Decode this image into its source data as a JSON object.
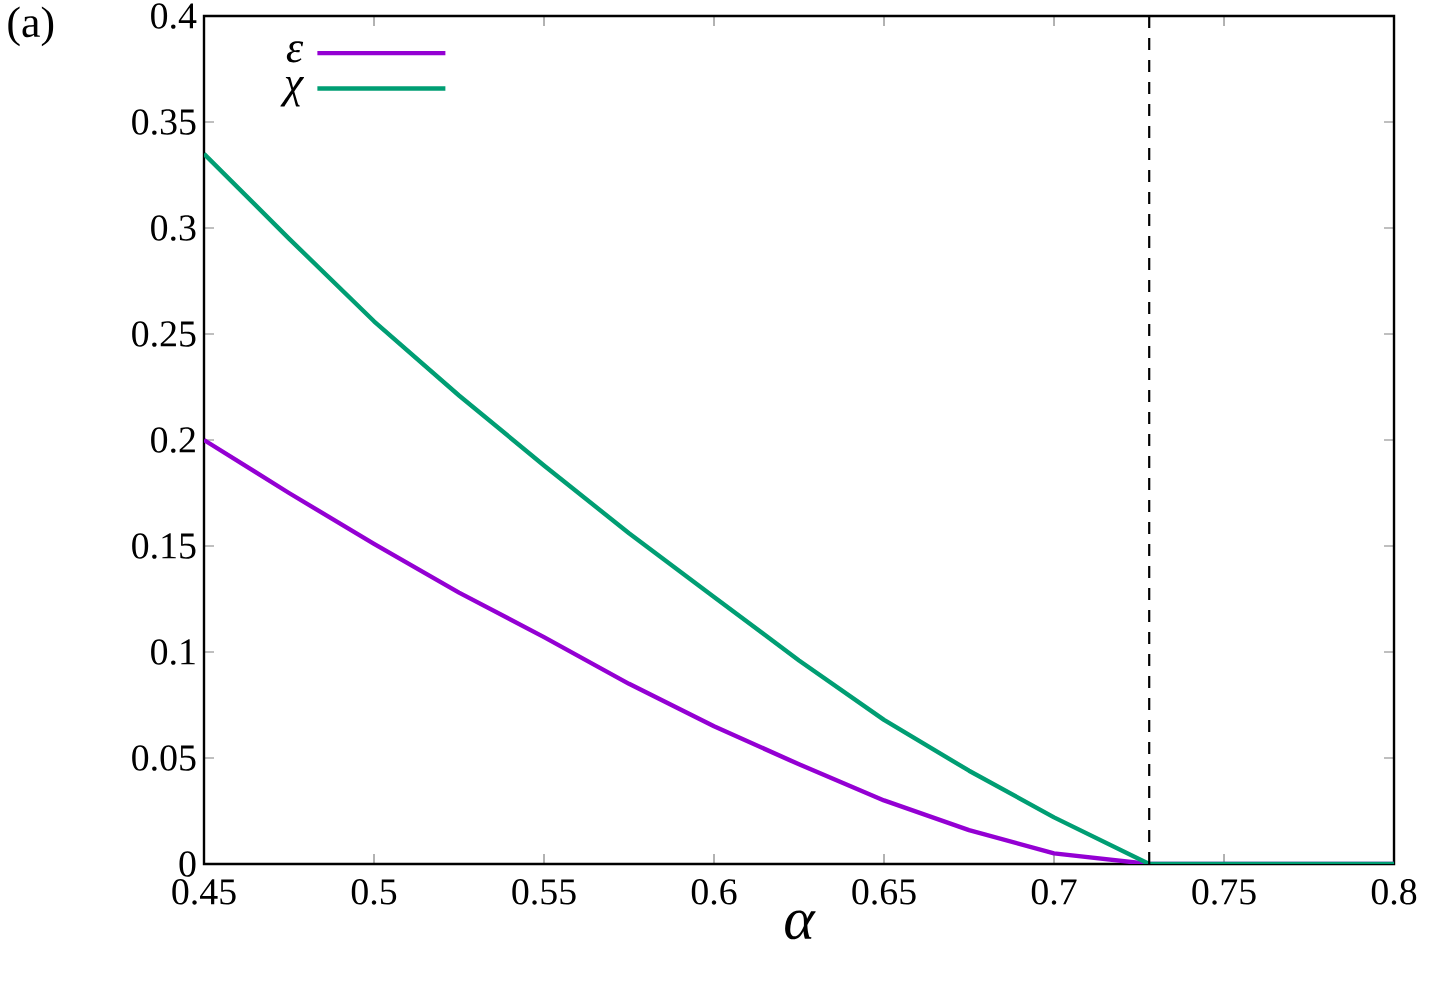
{
  "chart_data": {
    "type": "line",
    "xlabel": "α",
    "annotations": [
      "(a)"
    ],
    "xlim": [
      0.45,
      0.8
    ],
    "ylim": [
      0,
      0.4
    ],
    "xticks": [
      0.45,
      0.5,
      0.55,
      0.6,
      0.65,
      0.7,
      0.75,
      0.8
    ],
    "yticks": [
      0,
      0.05,
      0.1,
      0.15,
      0.2,
      0.25,
      0.3,
      0.35,
      0.4
    ],
    "x": [
      0.45,
      0.475,
      0.5,
      0.525,
      0.55,
      0.575,
      0.6,
      0.625,
      0.65,
      0.675,
      0.7,
      0.728,
      0.8
    ],
    "series": [
      {
        "name": "ε",
        "color": "#9400d3",
        "values": [
          0.2,
          0.175,
          0.151,
          0.128,
          0.107,
          0.085,
          0.065,
          0.047,
          0.03,
          0.016,
          0.005,
          0,
          0
        ]
      },
      {
        "name": "χ",
        "color": "#009e73",
        "values": [
          0.335,
          0.295,
          0.256,
          0.221,
          0.188,
          0.156,
          0.126,
          0.096,
          0.068,
          0.044,
          0.022,
          0,
          0
        ]
      }
    ],
    "ref_lines": [
      {
        "axis": "x",
        "value": 0.728,
        "color": "#000000",
        "line_style": "dashed"
      }
    ],
    "legend": "top left",
    "grid": false,
    "marker": "none",
    "line_style": "solid"
  }
}
